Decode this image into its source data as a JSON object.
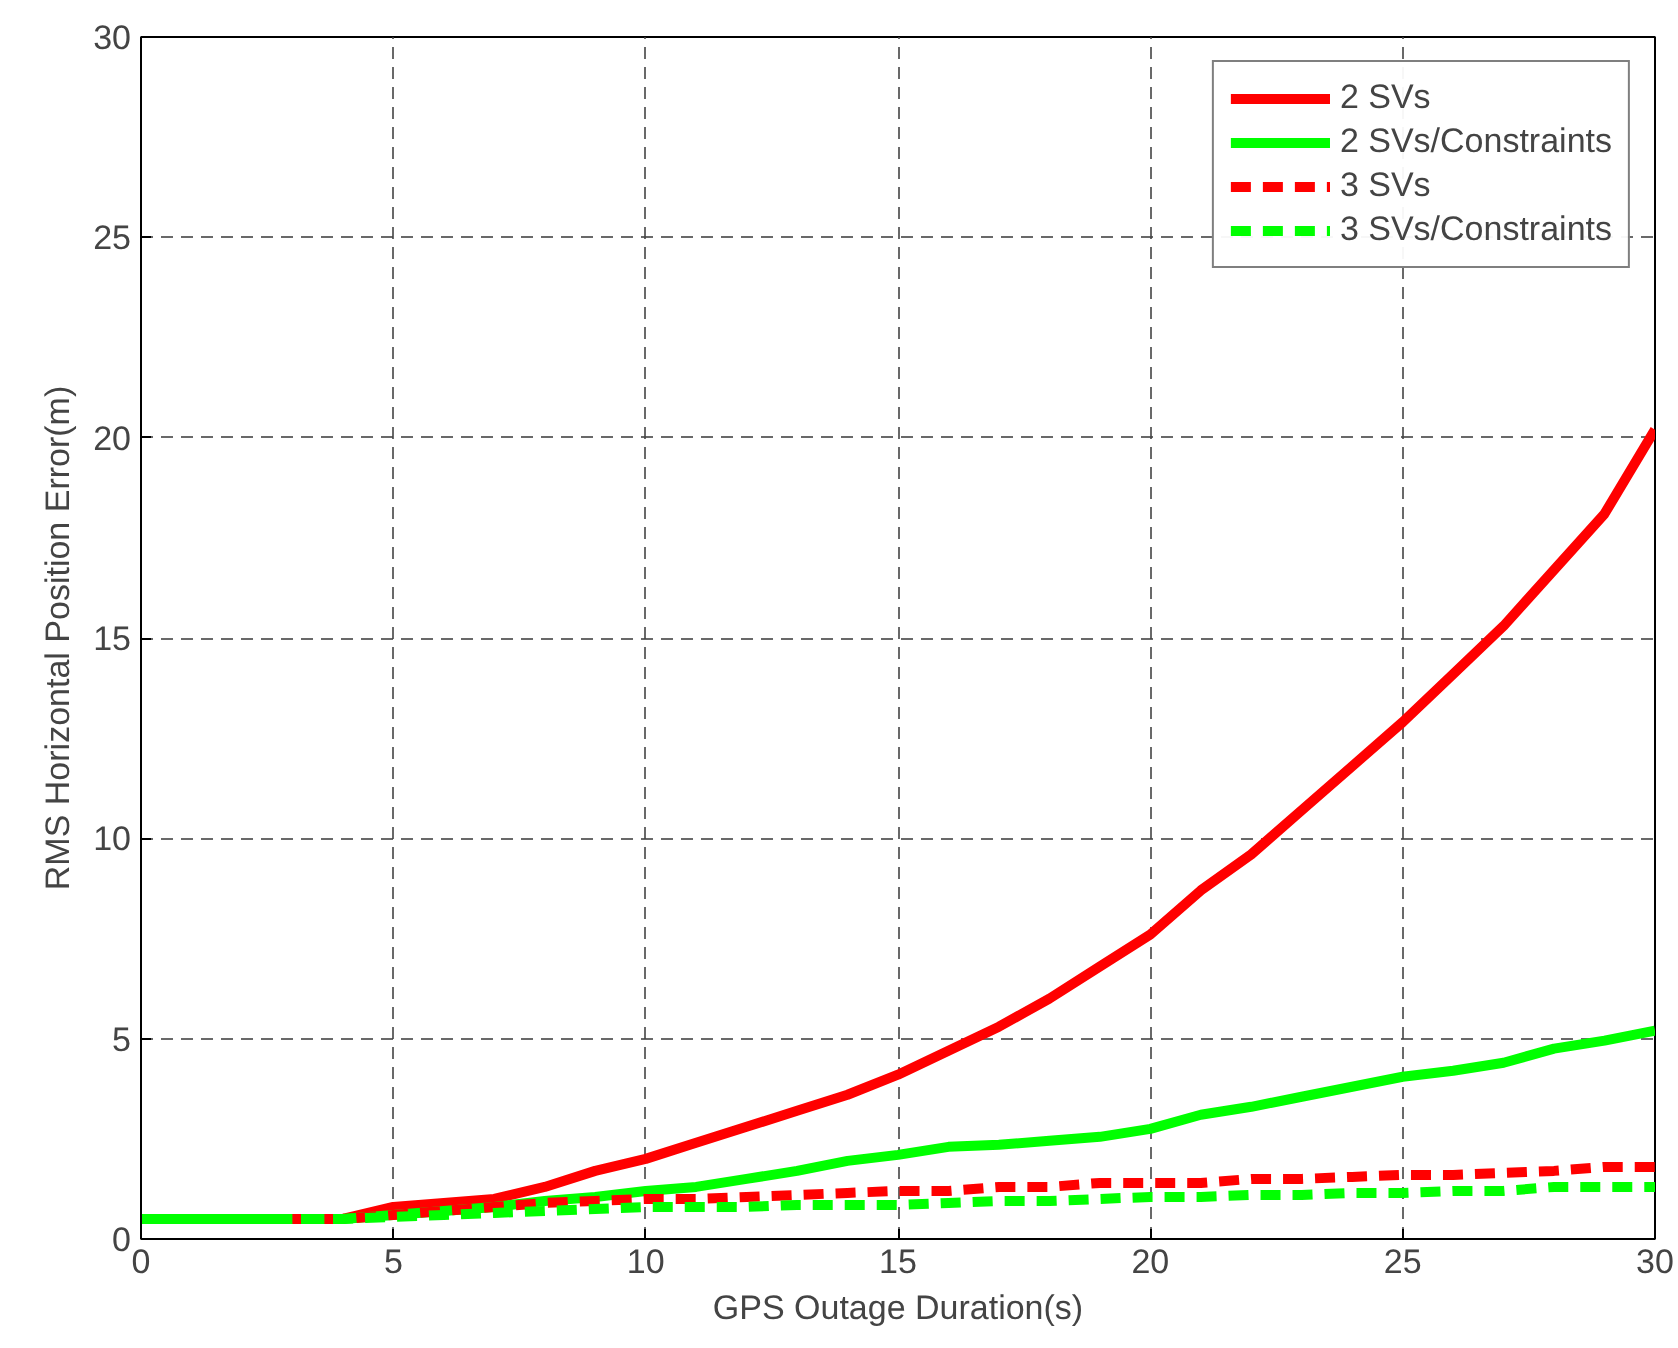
{
  "chart_data": {
    "type": "line",
    "xlabel": "GPS Outage Duration(s)",
    "ylabel": "RMS Horizontal Position Error(m)",
    "x": [
      0,
      1,
      2,
      3,
      4,
      5,
      6,
      7,
      8,
      9,
      10,
      11,
      12,
      13,
      14,
      15,
      16,
      17,
      18,
      19,
      20,
      21,
      22,
      23,
      24,
      25,
      26,
      27,
      28,
      29,
      30
    ],
    "series": [
      {
        "name": "2 SVs",
        "color": "#ff0000",
        "line_style": "solid",
        "values": [
          null,
          null,
          null,
          0.5,
          0.5,
          0.8,
          0.9,
          1.0,
          1.3,
          1.7,
          2.0,
          2.4,
          2.8,
          3.2,
          3.6,
          4.1,
          4.7,
          5.3,
          6.0,
          6.8,
          7.6,
          8.7,
          9.6,
          10.7,
          11.8,
          12.9,
          14.1,
          15.3,
          16.7,
          18.1,
          20.2
        ]
      },
      {
        "name": "2 SVs/Constraints",
        "color": "#00ff00",
        "line_style": "solid",
        "values": [
          0.5,
          0.5,
          0.5,
          0.5,
          0.5,
          0.6,
          0.7,
          0.8,
          0.95,
          1.05,
          1.2,
          1.3,
          1.5,
          1.7,
          1.95,
          2.1,
          2.3,
          2.35,
          2.45,
          2.55,
          2.75,
          3.1,
          3.3,
          3.55,
          3.8,
          4.05,
          4.2,
          4.4,
          4.75,
          4.95,
          5.2
        ]
      },
      {
        "name": "3 SVs",
        "color": "#ff0000",
        "line_style": "dashed",
        "values": [
          null,
          null,
          null,
          0.5,
          0.5,
          0.6,
          0.7,
          0.8,
          0.9,
          0.95,
          1.0,
          1.0,
          1.05,
          1.1,
          1.15,
          1.2,
          1.2,
          1.3,
          1.3,
          1.4,
          1.4,
          1.4,
          1.5,
          1.5,
          1.55,
          1.6,
          1.6,
          1.65,
          1.7,
          1.8,
          1.8
        ]
      },
      {
        "name": "3 SVs/Constraints",
        "color": "#00ff00",
        "line_style": "dashed",
        "values": [
          0.5,
          0.5,
          0.5,
          0.5,
          0.5,
          0.55,
          0.6,
          0.65,
          0.7,
          0.75,
          0.8,
          0.8,
          0.8,
          0.85,
          0.85,
          0.85,
          0.9,
          0.95,
          0.95,
          1.0,
          1.05,
          1.05,
          1.1,
          1.1,
          1.15,
          1.15,
          1.2,
          1.2,
          1.3,
          1.3,
          1.3
        ]
      }
    ],
    "xlim": [
      0,
      30
    ],
    "xticks": [
      0,
      5,
      10,
      15,
      20,
      25,
      30
    ],
    "ylim": [
      0,
      30
    ],
    "yticks": [
      0,
      5,
      10,
      15,
      20,
      25,
      30
    ],
    "grid": true,
    "legend": "top right",
    "marker": "none"
  }
}
